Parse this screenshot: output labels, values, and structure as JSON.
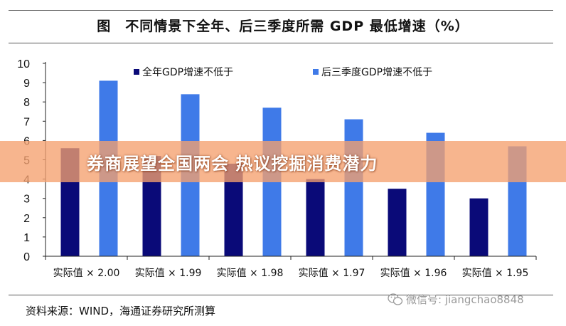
{
  "figure_title": "图　不同情景下全年、后三季度所需 GDP 最低增速（%）",
  "banner": "券商展望全国两会 热议挖掘消费潜力",
  "source": "资料来源：WIND，海通证券研究所测算",
  "watermark": "微信号: jiangchao8848",
  "colors": {
    "series1": "#0a0a78",
    "series2": "#3f7ae8",
    "banner": "#f5a06e"
  },
  "chart_data": {
    "type": "bar",
    "categories": [
      "实际值 × 2.00",
      "实际值 × 1.99",
      "实际值 × 1.98",
      "实际值 × 1.97",
      "实际值 × 1.96",
      "实际值 × 1.95"
    ],
    "series": [
      {
        "name": "全年GDP增速不低于",
        "values": [
          5.6,
          5.2,
          4.8,
          4.0,
          3.5,
          3.0
        ]
      },
      {
        "name": "后三季度GDP增速不低于",
        "values": [
          9.1,
          8.4,
          7.7,
          7.1,
          6.4,
          5.7
        ]
      }
    ],
    "ylim": [
      0,
      10
    ],
    "yticks": [
      0,
      1,
      2,
      3,
      4,
      5,
      6,
      7,
      8,
      9,
      10
    ],
    "grid": false,
    "legend": "top"
  }
}
